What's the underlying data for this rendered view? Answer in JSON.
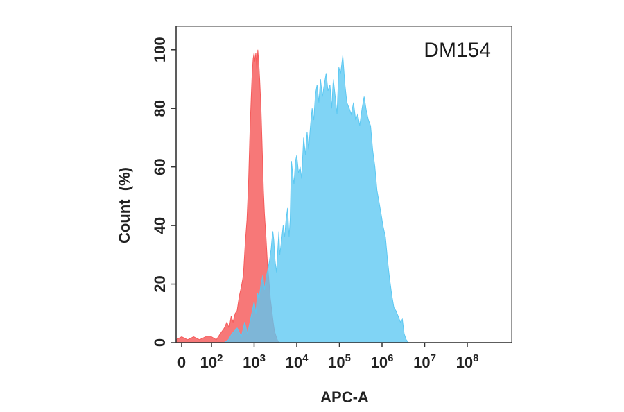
{
  "chart_data": {
    "type": "area",
    "title": "",
    "annotation": "DM154",
    "xlabel": "APC-A",
    "ylabel": "Count  (%)",
    "x_scale": "biexponential",
    "xlim": [
      -20,
      100000000
    ],
    "ylim": [
      0,
      108
    ],
    "grid": false,
    "x_ticks": [
      {
        "value": 0,
        "base": "0",
        "exp": ""
      },
      {
        "value": 100,
        "base": "10",
        "exp": "2"
      },
      {
        "value": 1000,
        "base": "10",
        "exp": "3"
      },
      {
        "value": 10000,
        "base": "10",
        "exp": "4"
      },
      {
        "value": 100000,
        "base": "10",
        "exp": "5"
      },
      {
        "value": 1000000,
        "base": "10",
        "exp": "6"
      },
      {
        "value": 10000000,
        "base": "10",
        "exp": "7"
      },
      {
        "value": 100000000,
        "base": "10",
        "exp": "8"
      }
    ],
    "y_ticks": [
      0,
      20,
      40,
      60,
      80,
      100
    ],
    "series": [
      {
        "color": "#f55a5a",
        "fill_opacity": 0.82,
        "points": [
          [
            -20,
            1
          ],
          [
            0,
            2
          ],
          [
            20,
            1
          ],
          [
            40,
            2
          ],
          [
            60,
            1
          ],
          [
            80,
            2
          ],
          [
            100,
            2
          ],
          [
            130,
            1
          ],
          [
            160,
            3
          ],
          [
            200,
            5
          ],
          [
            230,
            7
          ],
          [
            260,
            5
          ],
          [
            290,
            9
          ],
          [
            320,
            7
          ],
          [
            360,
            10
          ],
          [
            400,
            11
          ],
          [
            450,
            16
          ],
          [
            500,
            19
          ],
          [
            560,
            23
          ],
          [
            620,
            34
          ],
          [
            680,
            42
          ],
          [
            740,
            55
          ],
          [
            800,
            72
          ],
          [
            860,
            85
          ],
          [
            900,
            92
          ],
          [
            950,
            97
          ],
          [
            1000,
            99
          ],
          [
            1040,
            96
          ],
          [
            1100,
            99
          ],
          [
            1160,
            93
          ],
          [
            1220,
            100
          ],
          [
            1280,
            96
          ],
          [
            1350,
            90
          ],
          [
            1450,
            80
          ],
          [
            1550,
            66
          ],
          [
            1650,
            52
          ],
          [
            1750,
            44
          ],
          [
            1900,
            36
          ],
          [
            2050,
            27
          ],
          [
            2200,
            22
          ],
          [
            2400,
            15
          ],
          [
            2600,
            11
          ],
          [
            2800,
            7
          ],
          [
            3000,
            4
          ],
          [
            3300,
            2
          ],
          [
            3600,
            0.5
          ],
          [
            4000,
            0
          ]
        ]
      },
      {
        "color": "#5cc8f2",
        "fill_opacity": 0.78,
        "points": [
          [
            200,
            0
          ],
          [
            250,
            1
          ],
          [
            300,
            3
          ],
          [
            400,
            5
          ],
          [
            500,
            2
          ],
          [
            600,
            7
          ],
          [
            700,
            3
          ],
          [
            850,
            9
          ],
          [
            1000,
            14
          ],
          [
            1100,
            10
          ],
          [
            1200,
            17
          ],
          [
            1300,
            15
          ],
          [
            1450,
            20
          ],
          [
            1600,
            23
          ],
          [
            1750,
            18
          ],
          [
            1900,
            22
          ],
          [
            2100,
            25
          ],
          [
            2300,
            28
          ],
          [
            2500,
            32
          ],
          [
            2650,
            36
          ],
          [
            2750,
            38
          ],
          [
            2900,
            35
          ],
          [
            3100,
            28
          ],
          [
            3350,
            24
          ],
          [
            3600,
            32
          ],
          [
            3800,
            38
          ],
          [
            4000,
            30
          ],
          [
            4400,
            35
          ],
          [
            4800,
            40
          ],
          [
            5200,
            36
          ],
          [
            5600,
            42
          ],
          [
            6100,
            46
          ],
          [
            6600,
            36
          ],
          [
            7000,
            42
          ],
          [
            7500,
            62
          ],
          [
            8000,
            58
          ],
          [
            8600,
            54
          ],
          [
            9300,
            62
          ],
          [
            10000,
            64
          ],
          [
            11000,
            58
          ],
          [
            12000,
            60
          ],
          [
            13000,
            56
          ],
          [
            14500,
            70
          ],
          [
            16000,
            64
          ],
          [
            17500,
            72
          ],
          [
            19000,
            66
          ],
          [
            21000,
            74
          ],
          [
            23000,
            80
          ],
          [
            25000,
            76
          ],
          [
            27500,
            85
          ],
          [
            30000,
            88
          ],
          [
            33000,
            82
          ],
          [
            36000,
            90
          ],
          [
            40000,
            84
          ],
          [
            44000,
            88
          ],
          [
            49000,
            92
          ],
          [
            54000,
            86
          ],
          [
            60000,
            88
          ],
          [
            66000,
            80
          ],
          [
            72000,
            90
          ],
          [
            80000,
            84
          ],
          [
            88000,
            78
          ],
          [
            97000,
            94
          ],
          [
            107000,
            92
          ],
          [
            120000,
            98
          ],
          [
            135000,
            88
          ],
          [
            150000,
            82
          ],
          [
            170000,
            80
          ],
          [
            190000,
            78
          ],
          [
            215000,
            82
          ],
          [
            240000,
            76
          ],
          [
            270000,
            78
          ],
          [
            300000,
            74
          ],
          [
            340000,
            80
          ],
          [
            380000,
            84
          ],
          [
            430000,
            79
          ],
          [
            480000,
            76
          ],
          [
            540000,
            74
          ],
          [
            600000,
            66
          ],
          [
            680000,
            60
          ],
          [
            760000,
            52
          ],
          [
            850000,
            48
          ],
          [
            950000,
            44
          ],
          [
            1050000,
            40
          ],
          [
            1200000,
            36
          ],
          [
            1350000,
            28
          ],
          [
            1500000,
            22
          ],
          [
            1700000,
            16
          ],
          [
            1900000,
            12
          ],
          [
            2100000,
            11
          ],
          [
            2400000,
            9
          ],
          [
            2700000,
            7
          ],
          [
            3000000,
            8
          ],
          [
            3300000,
            3
          ],
          [
            3700000,
            1
          ],
          [
            4200000,
            0
          ]
        ]
      }
    ]
  }
}
